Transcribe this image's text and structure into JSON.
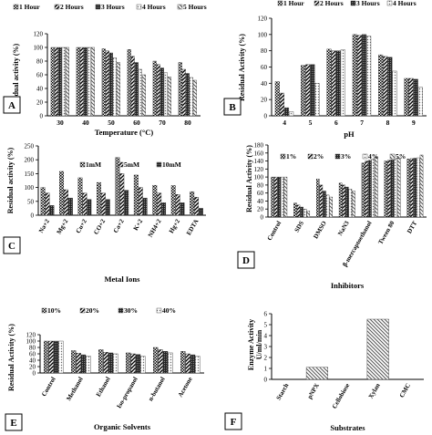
{
  "chart_data": [
    {
      "id": "A",
      "panel_label": "A",
      "type": "bar",
      "legend": [
        "1 Hour",
        "2 Hours",
        "3 Hours",
        "4 Hours",
        "5 Hours"
      ],
      "xlabel": "Temperature (°C)",
      "ylabel": "Residual activity (%)",
      "categories": [
        "30",
        "40",
        "50",
        "60",
        "70",
        "80"
      ],
      "ylim": [
        0,
        120
      ],
      "yticks": [
        "0",
        "20",
        "40",
        "60",
        "80",
        "100",
        "120"
      ],
      "series": [
        {
          "name": "1 Hour",
          "values": [
            100,
            100,
            98,
            97,
            80,
            78
          ]
        },
        {
          "name": "2 Hours",
          "values": [
            100,
            100,
            95,
            87,
            75,
            68
          ]
        },
        {
          "name": "3 Hours",
          "values": [
            100,
            100,
            92,
            78,
            70,
            62
          ]
        },
        {
          "name": "4 Hours",
          "values": [
            100,
            100,
            85,
            68,
            63,
            56
          ]
        },
        {
          "name": "5 Hours",
          "values": [
            100,
            100,
            78,
            60,
            57,
            52
          ]
        }
      ]
    },
    {
      "id": "B",
      "panel_label": "B",
      "type": "bar",
      "legend": [
        "1 Hour",
        "2 Hours",
        "3 Hours",
        "4 Hours"
      ],
      "xlabel": "pH",
      "ylabel": "Residual Activity (%)",
      "categories": [
        "4",
        "5",
        "6",
        "7",
        "8",
        "9"
      ],
      "ylim": [
        0,
        120
      ],
      "yticks": [
        "0",
        "20",
        "40",
        "60",
        "80",
        "100",
        "120"
      ],
      "series": [
        {
          "name": "1 Hour",
          "values": [
            42,
            62,
            82,
            100,
            75,
            46
          ]
        },
        {
          "name": "2 Hours",
          "values": [
            28,
            63,
            80,
            99,
            73,
            46
          ]
        },
        {
          "name": "3 Hours",
          "values": [
            10,
            63,
            80,
            100,
            72,
            45
          ]
        },
        {
          "name": "4 Hours",
          "values": [
            5,
            40,
            81,
            98,
            55,
            35
          ]
        }
      ]
    },
    {
      "id": "C",
      "panel_label": "C",
      "type": "bar",
      "legend": [
        "1mM",
        "5mM",
        "10mM"
      ],
      "xlabel": "Metal Ions",
      "ylabel": "Residual activity (%)",
      "categories": [
        "Na+2",
        "Mg+2",
        "Cu+2",
        "CO+2",
        "Ca+2",
        "K+2",
        "NH4+2",
        "Hg+2",
        "EDTA"
      ],
      "ylim": [
        0,
        250
      ],
      "yticks": [
        "0",
        "50",
        "100",
        "150",
        "200",
        "250"
      ],
      "series": [
        {
          "name": "1mM",
          "values": [
            100,
            158,
            135,
            118,
            208,
            145,
            108,
            107,
            85
          ]
        },
        {
          "name": "5mM",
          "values": [
            80,
            92,
            80,
            80,
            150,
            100,
            80,
            75,
            65
          ]
        },
        {
          "name": "10mM",
          "values": [
            35,
            62,
            57,
            57,
            90,
            62,
            45,
            45,
            25
          ]
        }
      ]
    },
    {
      "id": "D",
      "panel_label": "D",
      "type": "bar",
      "legend": [
        "1%",
        "2%",
        "3%",
        "4%",
        "5%"
      ],
      "xlabel": "Inhibitors",
      "ylabel": "Residual Activity (%)",
      "categories": [
        "Control",
        "SDS",
        "DMSO",
        "NaN3",
        "β-mercaptoethanol",
        "Tween 80",
        "DTT"
      ],
      "ylim": [
        0,
        180
      ],
      "yticks": [
        "0",
        "20",
        "40",
        "60",
        "80",
        "100",
        "120",
        "140",
        "160",
        "180"
      ],
      "series": [
        {
          "name": "1%",
          "values": [
            100,
            35,
            95,
            85,
            135,
            140,
            145
          ]
        },
        {
          "name": "2%",
          "values": [
            100,
            30,
            80,
            80,
            140,
            142,
            146
          ]
        },
        {
          "name": "3%",
          "values": [
            100,
            25,
            65,
            75,
            142,
            143,
            147
          ]
        },
        {
          "name": "4%",
          "values": [
            100,
            20,
            55,
            70,
            145,
            144,
            148
          ]
        },
        {
          "name": "5%",
          "values": [
            100,
            15,
            50,
            65,
            150,
            148,
            155
          ]
        }
      ]
    },
    {
      "id": "E",
      "panel_label": "E",
      "type": "bar",
      "legend": [
        "10%",
        "20%",
        "30%",
        "40%"
      ],
      "xlabel": "Organic Solvents",
      "ylabel": "Residual Activity (%)",
      "categories": [
        "Control",
        "Methanol",
        "Ethanol",
        "Iso-propanol",
        "n-butanol",
        "Acetone"
      ],
      "ylim": [
        0,
        120
      ],
      "yticks": [
        "0",
        "20",
        "40",
        "60",
        "80",
        "100",
        "120"
      ],
      "series": [
        {
          "name": "10%",
          "values": [
            100,
            70,
            73,
            63,
            80,
            68
          ]
        },
        {
          "name": "20%",
          "values": [
            100,
            62,
            65,
            60,
            73,
            60
          ]
        },
        {
          "name": "30%",
          "values": [
            100,
            57,
            63,
            58,
            68,
            57
          ]
        },
        {
          "name": "40%",
          "values": [
            100,
            53,
            60,
            52,
            63,
            52
          ]
        }
      ]
    },
    {
      "id": "F",
      "panel_label": "F",
      "type": "bar",
      "legend": [],
      "xlabel": "Substrates",
      "ylabel": "Enzyme Activity\nU/ml/min",
      "categories": [
        "Starch",
        "pNPX",
        "Cellobiose",
        "Xylan",
        "CMC"
      ],
      "ylim": [
        0,
        6
      ],
      "yticks": [
        "0",
        "1",
        "2",
        "3",
        "4",
        "5",
        "6"
      ],
      "series": [
        {
          "name": "",
          "values": [
            0,
            1.1,
            0,
            5.5,
            0
          ]
        }
      ]
    }
  ]
}
